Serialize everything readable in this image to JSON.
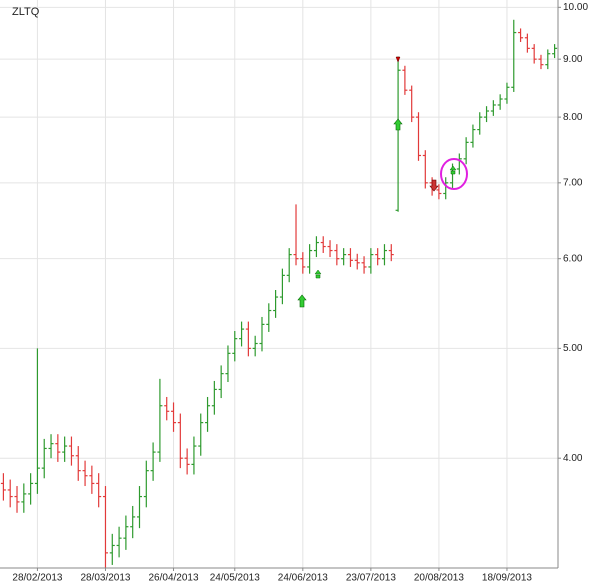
{
  "chart_data": {
    "type": "ohlc",
    "title": "ZLTQ",
    "log_scale": true,
    "grid": true,
    "up_color": "#2e9a2e",
    "down_color": "#e23a3a",
    "categories": [
      null,
      null,
      null,
      null,
      null,
      "28/02/2013",
      null,
      null,
      null,
      null,
      null,
      null,
      null,
      null,
      null,
      "28/03/2013",
      null,
      null,
      null,
      null,
      null,
      null,
      null,
      null,
      null,
      "26/04/2013",
      null,
      null,
      null,
      null,
      null,
      null,
      null,
      null,
      "24/05/2013",
      null,
      null,
      null,
      null,
      null,
      null,
      null,
      null,
      null,
      "24/06/2013",
      null,
      null,
      null,
      null,
      null,
      null,
      null,
      null,
      null,
      "23/07/2013",
      null,
      null,
      null,
      null,
      null,
      null,
      null,
      null,
      null,
      "20/08/2013",
      null,
      null,
      null,
      null,
      null,
      null,
      null,
      null,
      null,
      "18/09/2013",
      null,
      null,
      null,
      null,
      null,
      null,
      null
    ],
    "open": [
      3.8,
      3.75,
      3.7,
      3.66,
      3.72,
      3.8,
      3.92,
      4.08,
      4.12,
      4.05,
      4.1,
      4.02,
      3.9,
      3.86,
      3.8,
      3.7,
      3.3,
      3.35,
      3.4,
      3.48,
      3.55,
      3.7,
      3.9,
      4.05,
      4.45,
      4.4,
      4.3,
      4.0,
      3.95,
      4.1,
      4.3,
      4.45,
      4.6,
      4.75,
      4.95,
      5.1,
      5.2,
      5.0,
      5.05,
      5.25,
      5.4,
      5.55,
      5.8,
      6.05,
      6.0,
      5.9,
      6.1,
      6.2,
      6.15,
      6.1,
      6.0,
      6.05,
      5.98,
      5.95,
      5.9,
      6.05,
      6.0,
      6.1,
      6.62,
      8.8,
      8.45,
      8.0,
      7.4,
      7.0,
      6.9,
      6.85,
      7.0,
      7.2,
      7.35,
      7.6,
      7.8,
      8.0,
      8.1,
      8.2,
      8.3,
      8.5,
      9.5,
      9.4,
      9.2,
      9.0,
      8.9,
      9.1
    ],
    "high": [
      3.88,
      3.83,
      3.78,
      3.8,
      3.88,
      5.0,
      4.16,
      4.2,
      4.2,
      4.18,
      4.18,
      4.1,
      3.98,
      3.94,
      3.88,
      3.78,
      3.43,
      3.48,
      3.56,
      3.63,
      3.78,
      3.98,
      4.13,
      4.7,
      4.53,
      4.48,
      4.38,
      4.08,
      4.18,
      4.38,
      4.53,
      4.68,
      4.83,
      5.03,
      5.18,
      5.28,
      5.28,
      5.13,
      5.33,
      5.48,
      5.63,
      5.88,
      6.13,
      6.7,
      6.08,
      6.18,
      6.28,
      6.28,
      6.23,
      6.18,
      6.13,
      6.13,
      6.06,
      6.03,
      6.13,
      6.13,
      6.18,
      6.18,
      9.05,
      8.88,
      8.53,
      8.08,
      7.48,
      7.08,
      6.98,
      7.08,
      7.28,
      7.43,
      7.68,
      7.88,
      8.08,
      8.18,
      8.28,
      8.38,
      8.58,
      9.75,
      9.58,
      9.48,
      9.28,
      9.08,
      9.18,
      9.28
    ],
    "low": [
      3.67,
      3.62,
      3.58,
      3.58,
      3.64,
      3.72,
      3.84,
      4.0,
      3.97,
      3.97,
      3.94,
      3.82,
      3.78,
      3.72,
      3.62,
      3.2,
      3.22,
      3.27,
      3.32,
      3.4,
      3.47,
      3.62,
      3.82,
      3.97,
      4.32,
      4.22,
      3.92,
      3.87,
      3.87,
      4.02,
      4.22,
      4.37,
      4.52,
      4.67,
      4.87,
      5.02,
      4.92,
      4.92,
      4.97,
      5.17,
      5.32,
      5.47,
      5.72,
      5.92,
      5.82,
      5.82,
      6.02,
      6.07,
      6.02,
      5.92,
      5.92,
      5.9,
      5.87,
      5.82,
      5.82,
      5.92,
      5.92,
      5.97,
      6.6,
      8.37,
      7.92,
      7.32,
      6.92,
      6.82,
      6.77,
      6.77,
      6.92,
      7.12,
      7.27,
      7.52,
      7.72,
      7.92,
      8.02,
      8.12,
      8.22,
      8.42,
      9.32,
      9.12,
      8.92,
      8.82,
      8.82,
      9.02
    ],
    "close": [
      3.75,
      3.7,
      3.66,
      3.72,
      3.8,
      3.92,
      4.08,
      4.12,
      4.05,
      4.1,
      4.02,
      3.9,
      3.86,
      3.8,
      3.7,
      3.3,
      3.35,
      3.4,
      3.48,
      3.55,
      3.7,
      3.9,
      4.05,
      4.45,
      4.4,
      4.3,
      4.0,
      3.95,
      4.1,
      4.3,
      4.45,
      4.6,
      4.75,
      4.95,
      5.1,
      5.2,
      5.0,
      5.05,
      5.25,
      5.4,
      5.55,
      5.8,
      6.05,
      6.0,
      5.9,
      6.1,
      6.2,
      6.15,
      6.1,
      6.0,
      6.05,
      5.98,
      5.95,
      5.9,
      6.05,
      6.0,
      6.1,
      6.05,
      8.8,
      8.45,
      8.0,
      7.4,
      7.0,
      6.9,
      6.85,
      7.0,
      7.2,
      7.35,
      7.6,
      7.8,
      8.0,
      8.1,
      8.2,
      8.3,
      8.5,
      9.5,
      9.4,
      9.2,
      9.0,
      8.9,
      9.1,
      9.2
    ],
    "ylim": [
      3.2,
      10.15
    ],
    "yticks": [
      {
        "value": 4,
        "label": "4.00"
      },
      {
        "value": 5,
        "label": "5.00"
      },
      {
        "value": 6,
        "label": "6.00"
      },
      {
        "value": 7,
        "label": "7.00"
      },
      {
        "value": 8,
        "label": "8.00"
      },
      {
        "value": 9,
        "label": "9.00"
      },
      {
        "value": 10,
        "label": "10.00"
      }
    ]
  }
}
